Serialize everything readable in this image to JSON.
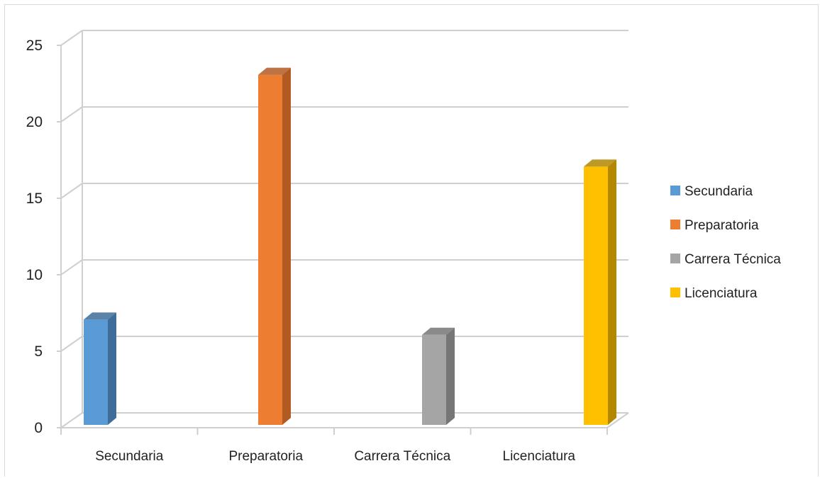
{
  "chart_data": {
    "type": "bar",
    "categories": [
      "Secundaria",
      "Preparatoria",
      "Carrera Técnica",
      "Licenciatura"
    ],
    "values": [
      8,
      24,
      7,
      18
    ],
    "colors": [
      "#5b9bd5",
      "#ed7d31",
      "#a5a5a5",
      "#ffc000"
    ],
    "side_colors": [
      "#3e6d99",
      "#b15b22",
      "#767676",
      "#b38700"
    ],
    "ylim": [
      0,
      25
    ],
    "yticks": [
      0,
      5,
      10,
      15,
      20,
      25
    ],
    "grid": true,
    "style": "3d-column",
    "legend": {
      "position": "right",
      "entries": [
        "Secundaria",
        "Preparatoria",
        "Carrera Técnica",
        "Licenciatura"
      ]
    },
    "title": "",
    "xlabel": "",
    "ylabel": ""
  }
}
